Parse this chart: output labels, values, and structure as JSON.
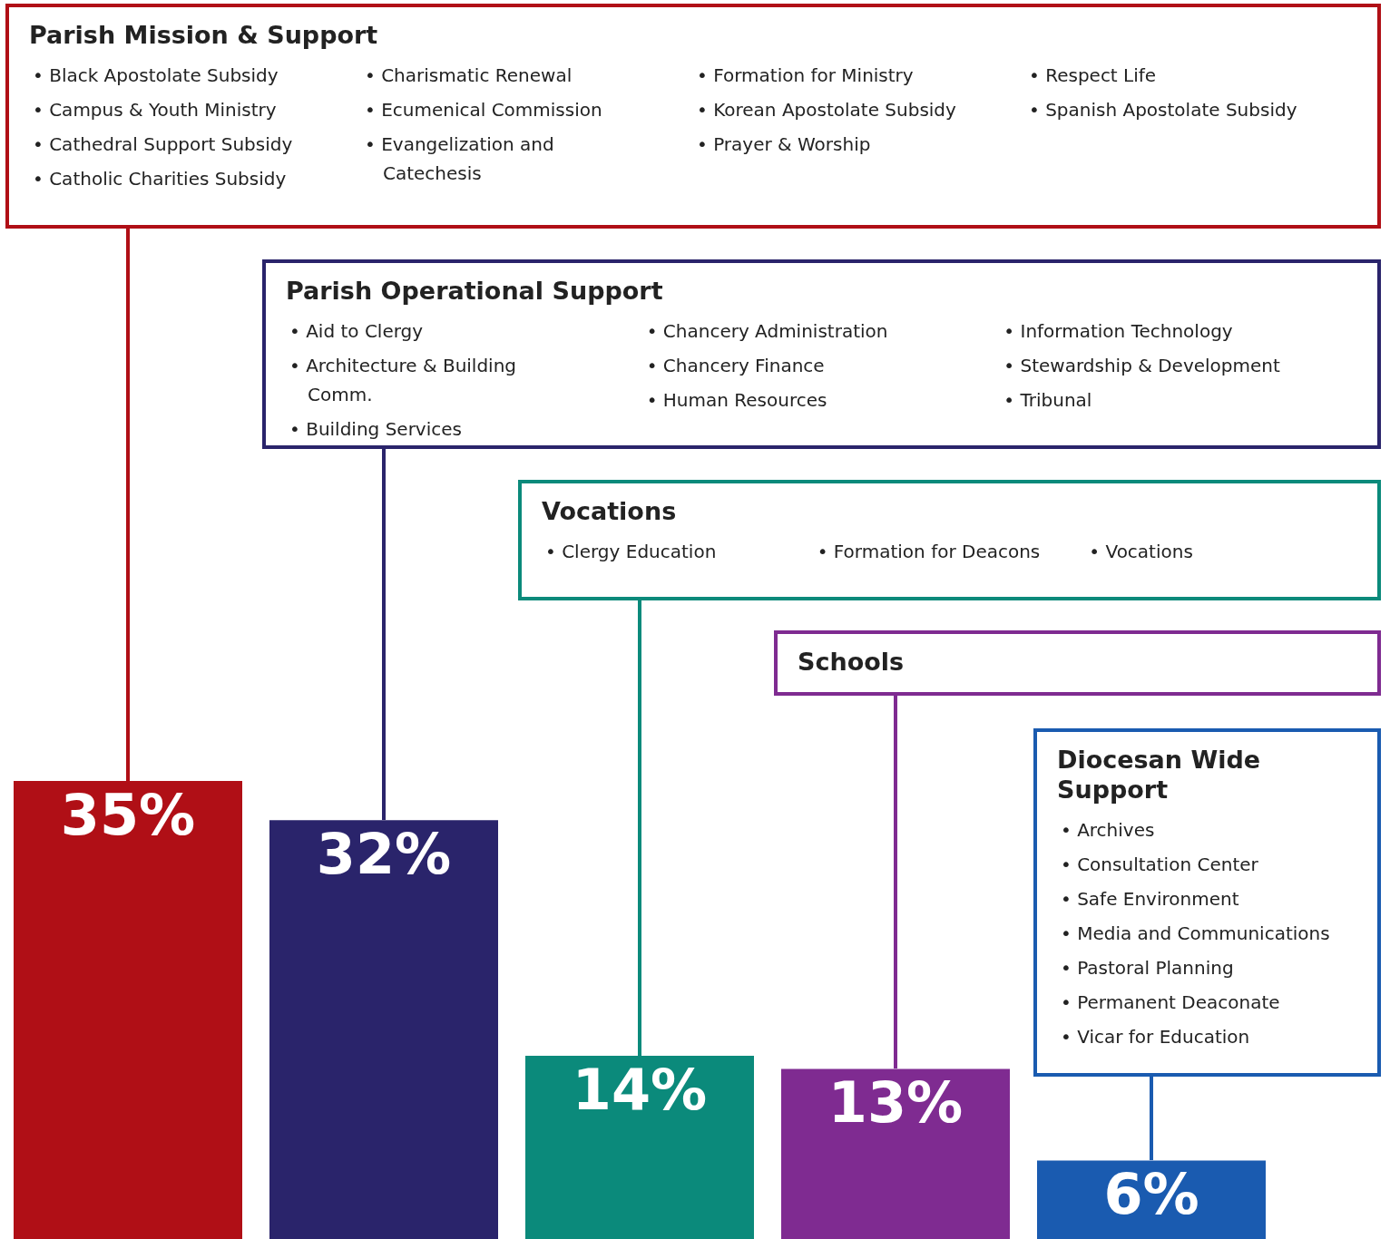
{
  "chart_data": {
    "type": "bar",
    "categories": [
      null,
      null,
      null,
      null,
      null
    ],
    "values": [
      35,
      32,
      14,
      13,
      6
    ],
    "colors": [
      "#b00f16",
      "#2a246b",
      "#0b8a7b",
      "#7f2b91",
      "#1a5bb0"
    ],
    "value_labels": [
      "35%",
      "32%",
      "14%",
      "13%",
      "6%"
    ],
    "annotations": [
      "Parish Mission & Support",
      "• Black Apostolate Subsidy",
      "• Campus & Youth Ministry",
      "• Cathedral Support Subsidy",
      "• Catholic Charities Subsidy",
      "• Charismatic Renewal",
      "• Ecumenical Commission",
      "• Evangelization and Catechesis",
      "• Formation for Ministry",
      "• Korean Apostolate Subsidy",
      "• Prayer & Worship",
      "• Respect Life",
      "• Spanish Apostolate Subsidy",
      "Parish Operational Support",
      "• Aid to Clergy",
      "• Architecture & Building Comm.",
      "• Building Services",
      "• Chancery Administration",
      "• Chancery Finance",
      "• Human Resources",
      "• Information Technology",
      "• Stewardship & Development",
      "• Tribunal",
      "Vocations",
      "• Clergy Education",
      "• Formation for Deacons",
      "• Vocations",
      "Schools",
      "Diocesan Wide Support",
      "• Archives",
      "• Consultation Center",
      "• Safe Environment",
      "• Media and Communications",
      "• Pastoral Planning",
      "• Permanent Deaconate",
      "• Vicar for Education"
    ]
  }
}
